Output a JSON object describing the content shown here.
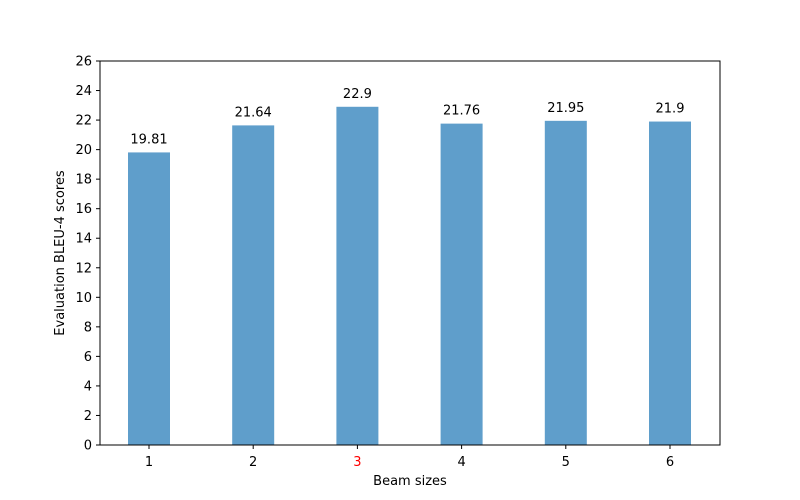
{
  "chart_data": {
    "type": "bar",
    "categories": [
      "1",
      "2",
      "3",
      "4",
      "5",
      "6"
    ],
    "values": [
      19.81,
      21.64,
      22.9,
      21.76,
      21.95,
      21.9
    ],
    "data_labels": [
      "19.81",
      "21.64",
      "22.9",
      "21.76",
      "21.95",
      "21.9"
    ],
    "title": "",
    "xlabel": "Beam sizes",
    "ylabel": "Evaluation BLEU-4 scores",
    "ylim": [
      0,
      26
    ],
    "yticks": [
      0,
      2,
      4,
      6,
      8,
      10,
      12,
      14,
      16,
      18,
      20,
      22,
      24,
      26
    ],
    "grid": false,
    "legend": "none",
    "colors": {
      "bar": "#5f9ecb",
      "highlight_tick": "#ff0000",
      "axis": "#000000"
    },
    "highlight_category": "3"
  }
}
